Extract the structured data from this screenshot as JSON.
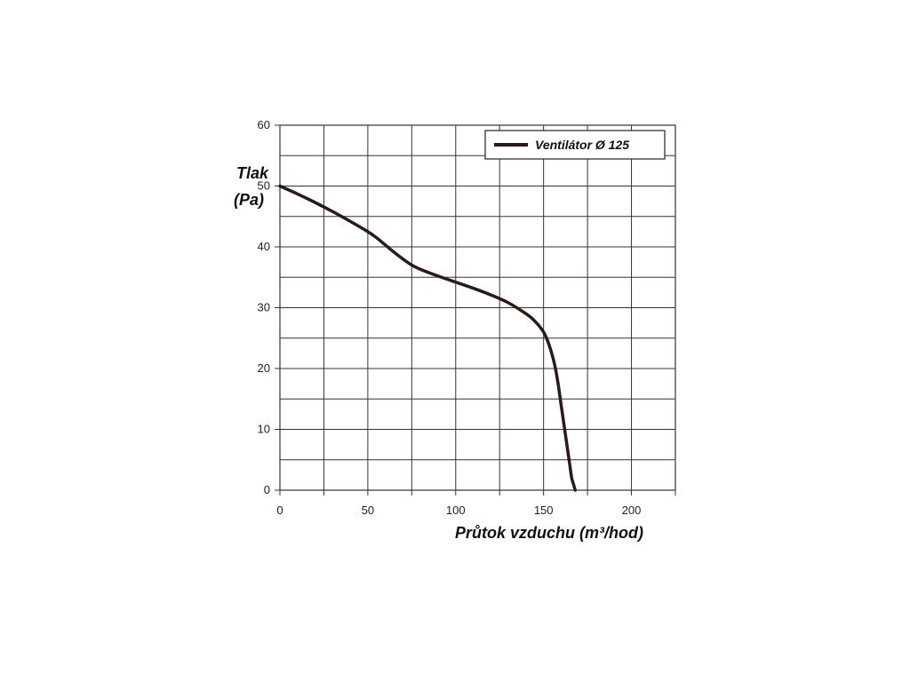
{
  "chart_data": {
    "type": "line",
    "title": "",
    "xlabel": "Průtok vzduchu (m³/hod)",
    "ylabel_line1": "Tlak",
    "ylabel_line2": "(Pa)",
    "xlim": [
      0,
      225
    ],
    "ylim": [
      0,
      60
    ],
    "x_ticks": [
      0,
      50,
      100,
      150,
      200
    ],
    "y_ticks": [
      0,
      10,
      20,
      30,
      40,
      50,
      60
    ],
    "x_grid_step": 25,
    "y_grid_step": 5,
    "grid": true,
    "legend_position": "top-right",
    "colors": {
      "line": "#2b1a1a",
      "grid": "#333333",
      "text": "#111111"
    },
    "series": [
      {
        "name": "Ventilátor Ø 125",
        "x": [
          0,
          10,
          20,
          30,
          40,
          50,
          55,
          60,
          65,
          70,
          75,
          80,
          90,
          100,
          110,
          120,
          130,
          140,
          145,
          150,
          153,
          156,
          158,
          160,
          162,
          164,
          165,
          166,
          167,
          168
        ],
        "y": [
          50,
          48.7,
          47.3,
          45.8,
          44.2,
          42.5,
          41.5,
          40.3,
          39.1,
          38,
          37,
          36.3,
          35.2,
          34.2,
          33.2,
          32.1,
          30.8,
          29,
          27.8,
          26,
          24,
          21,
          18,
          14,
          10,
          6,
          4,
          2,
          1,
          0
        ]
      }
    ]
  }
}
